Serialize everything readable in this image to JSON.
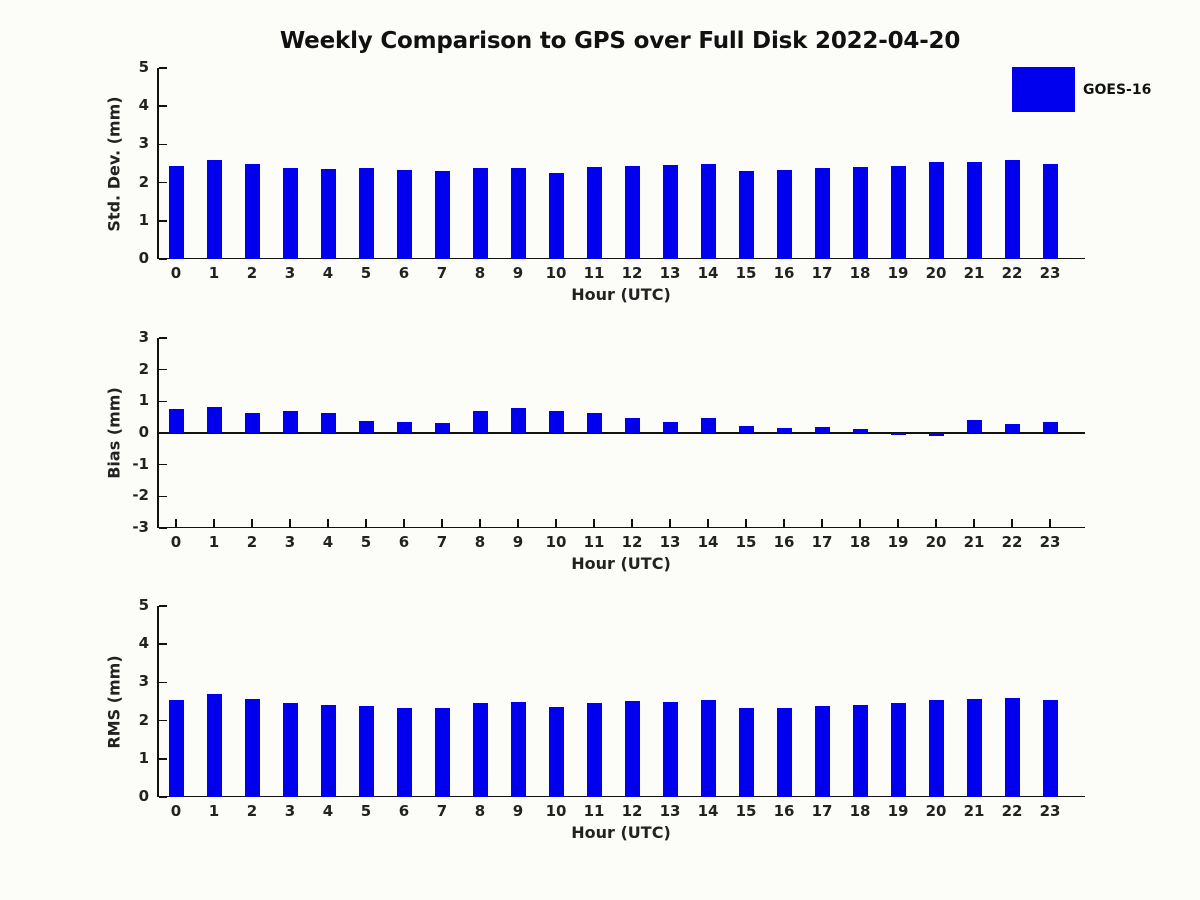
{
  "title": "Weekly Comparison to GPS over Full Disk 2022-04-20",
  "legend": {
    "label": "GOES-16",
    "color": "#0000ee"
  },
  "colors": {
    "bar": "#0000ee",
    "axis": "#111111",
    "text": "#1a1a1a",
    "background": "#fcfcf9"
  },
  "chart_data": [
    {
      "type": "bar",
      "series_name": "GOES-16",
      "categories": [
        "0",
        "1",
        "2",
        "3",
        "4",
        "5",
        "6",
        "7",
        "8",
        "9",
        "10",
        "11",
        "12",
        "13",
        "14",
        "15",
        "16",
        "17",
        "18",
        "19",
        "20",
        "21",
        "22",
        "23"
      ],
      "values": [
        2.43,
        2.58,
        2.5,
        2.38,
        2.35,
        2.38,
        2.32,
        2.31,
        2.38,
        2.38,
        2.24,
        2.4,
        2.44,
        2.45,
        2.48,
        2.31,
        2.33,
        2.37,
        2.4,
        2.44,
        2.54,
        2.55,
        2.58,
        2.49
      ],
      "ylabel": "Std. Dev. (mm)",
      "xlabel": "Hour (UTC)",
      "ylim": [
        0,
        5
      ],
      "yticks": [
        0,
        1,
        2,
        3,
        4,
        5
      ],
      "grid": false,
      "legend_position": "upper-right-outside"
    },
    {
      "type": "bar",
      "series_name": "GOES-16",
      "categories": [
        "0",
        "1",
        "2",
        "3",
        "4",
        "5",
        "6",
        "7",
        "8",
        "9",
        "10",
        "11",
        "12",
        "13",
        "14",
        "15",
        "16",
        "17",
        "18",
        "19",
        "20",
        "21",
        "22",
        "23"
      ],
      "values": [
        0.76,
        0.81,
        0.64,
        0.7,
        0.64,
        0.39,
        0.36,
        0.31,
        0.7,
        0.78,
        0.7,
        0.64,
        0.48,
        0.36,
        0.48,
        0.23,
        0.17,
        0.2,
        0.14,
        -0.06,
        -0.08,
        0.42,
        0.27,
        0.36
      ],
      "ylabel": "Bias (mm)",
      "xlabel": "Hour (UTC)",
      "ylim": [
        -3,
        3
      ],
      "yticks": [
        3,
        2,
        1,
        0,
        -1,
        -2,
        -3
      ],
      "grid": false,
      "zero_line": true
    },
    {
      "type": "bar",
      "series_name": "GOES-16",
      "categories": [
        "0",
        "1",
        "2",
        "3",
        "4",
        "5",
        "6",
        "7",
        "8",
        "9",
        "10",
        "11",
        "12",
        "13",
        "14",
        "15",
        "16",
        "17",
        "18",
        "19",
        "20",
        "21",
        "22",
        "23"
      ],
      "values": [
        2.54,
        2.7,
        2.57,
        2.47,
        2.42,
        2.38,
        2.33,
        2.33,
        2.47,
        2.5,
        2.35,
        2.47,
        2.52,
        2.49,
        2.54,
        2.32,
        2.32,
        2.38,
        2.42,
        2.47,
        2.54,
        2.57,
        2.6,
        2.54
      ],
      "ylabel": "RMS (mm)",
      "xlabel": "Hour (UTC)",
      "ylim": [
        0,
        5
      ],
      "yticks": [
        0,
        1,
        2,
        3,
        4,
        5
      ],
      "grid": false
    }
  ]
}
